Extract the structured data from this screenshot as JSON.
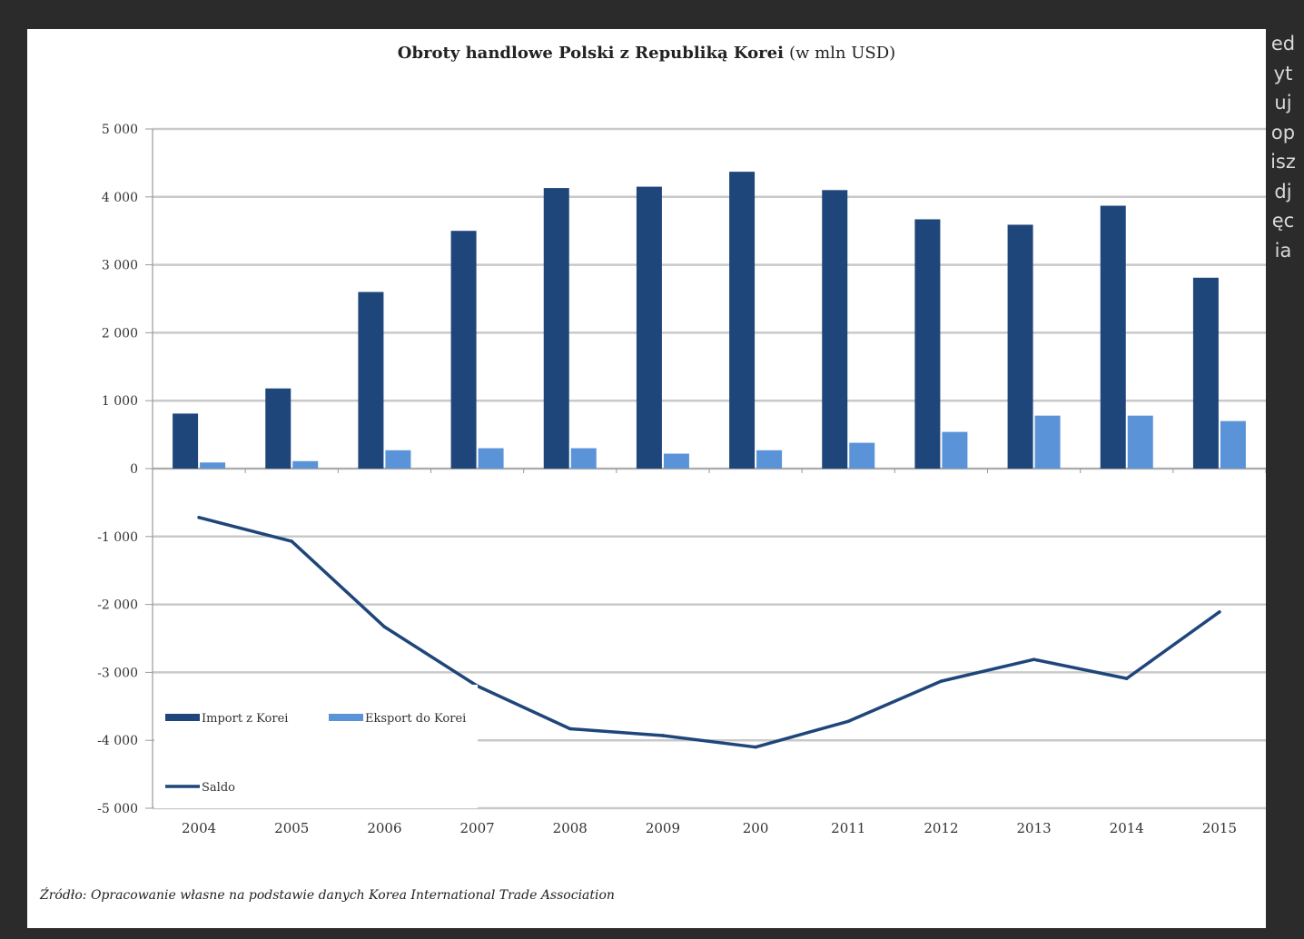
{
  "sidebar": {
    "text": "edytujopiszdjęcia"
  },
  "chart_data": {
    "type": "bar",
    "title": "Obroty handlowe Polski z Republiką Korei",
    "title_unit": "(w mln USD)",
    "categories": [
      "2004",
      "2005",
      "2006",
      "2007",
      "2008",
      "2009",
      "200",
      "2011",
      "2012",
      "2013",
      "2014",
      "2015"
    ],
    "series": [
      {
        "name": "Import z Korei",
        "type": "bar",
        "color": "#1f467a",
        "values": [
          810,
          1180,
          2600,
          3500,
          4130,
          4150,
          4370,
          4100,
          3670,
          3590,
          3870,
          2810
        ]
      },
      {
        "name": "Eksport do Korei",
        "type": "bar",
        "color": "#5b93d8",
        "values": [
          90,
          110,
          270,
          300,
          300,
          220,
          270,
          380,
          540,
          780,
          780,
          700
        ]
      },
      {
        "name": "Saldo",
        "type": "line",
        "color": "#1f467a",
        "values": [
          -720,
          -1070,
          -2330,
          -3200,
          -3830,
          -3930,
          -4100,
          -3720,
          -3130,
          -2810,
          -3090,
          -2110
        ]
      }
    ],
    "y_ticks": [
      "5 000",
      "4 000",
      "3 000",
      "2 000",
      "1 000",
      "0",
      "-1 000",
      "-2 000",
      "-3 000",
      "-4 000",
      "-5 000"
    ],
    "ylim": [
      -5000,
      5000
    ],
    "grid": true,
    "legend_position": "lower-left",
    "source": "Źródło: Opracowanie własne na podstawie danych Korea International Trade Association"
  }
}
